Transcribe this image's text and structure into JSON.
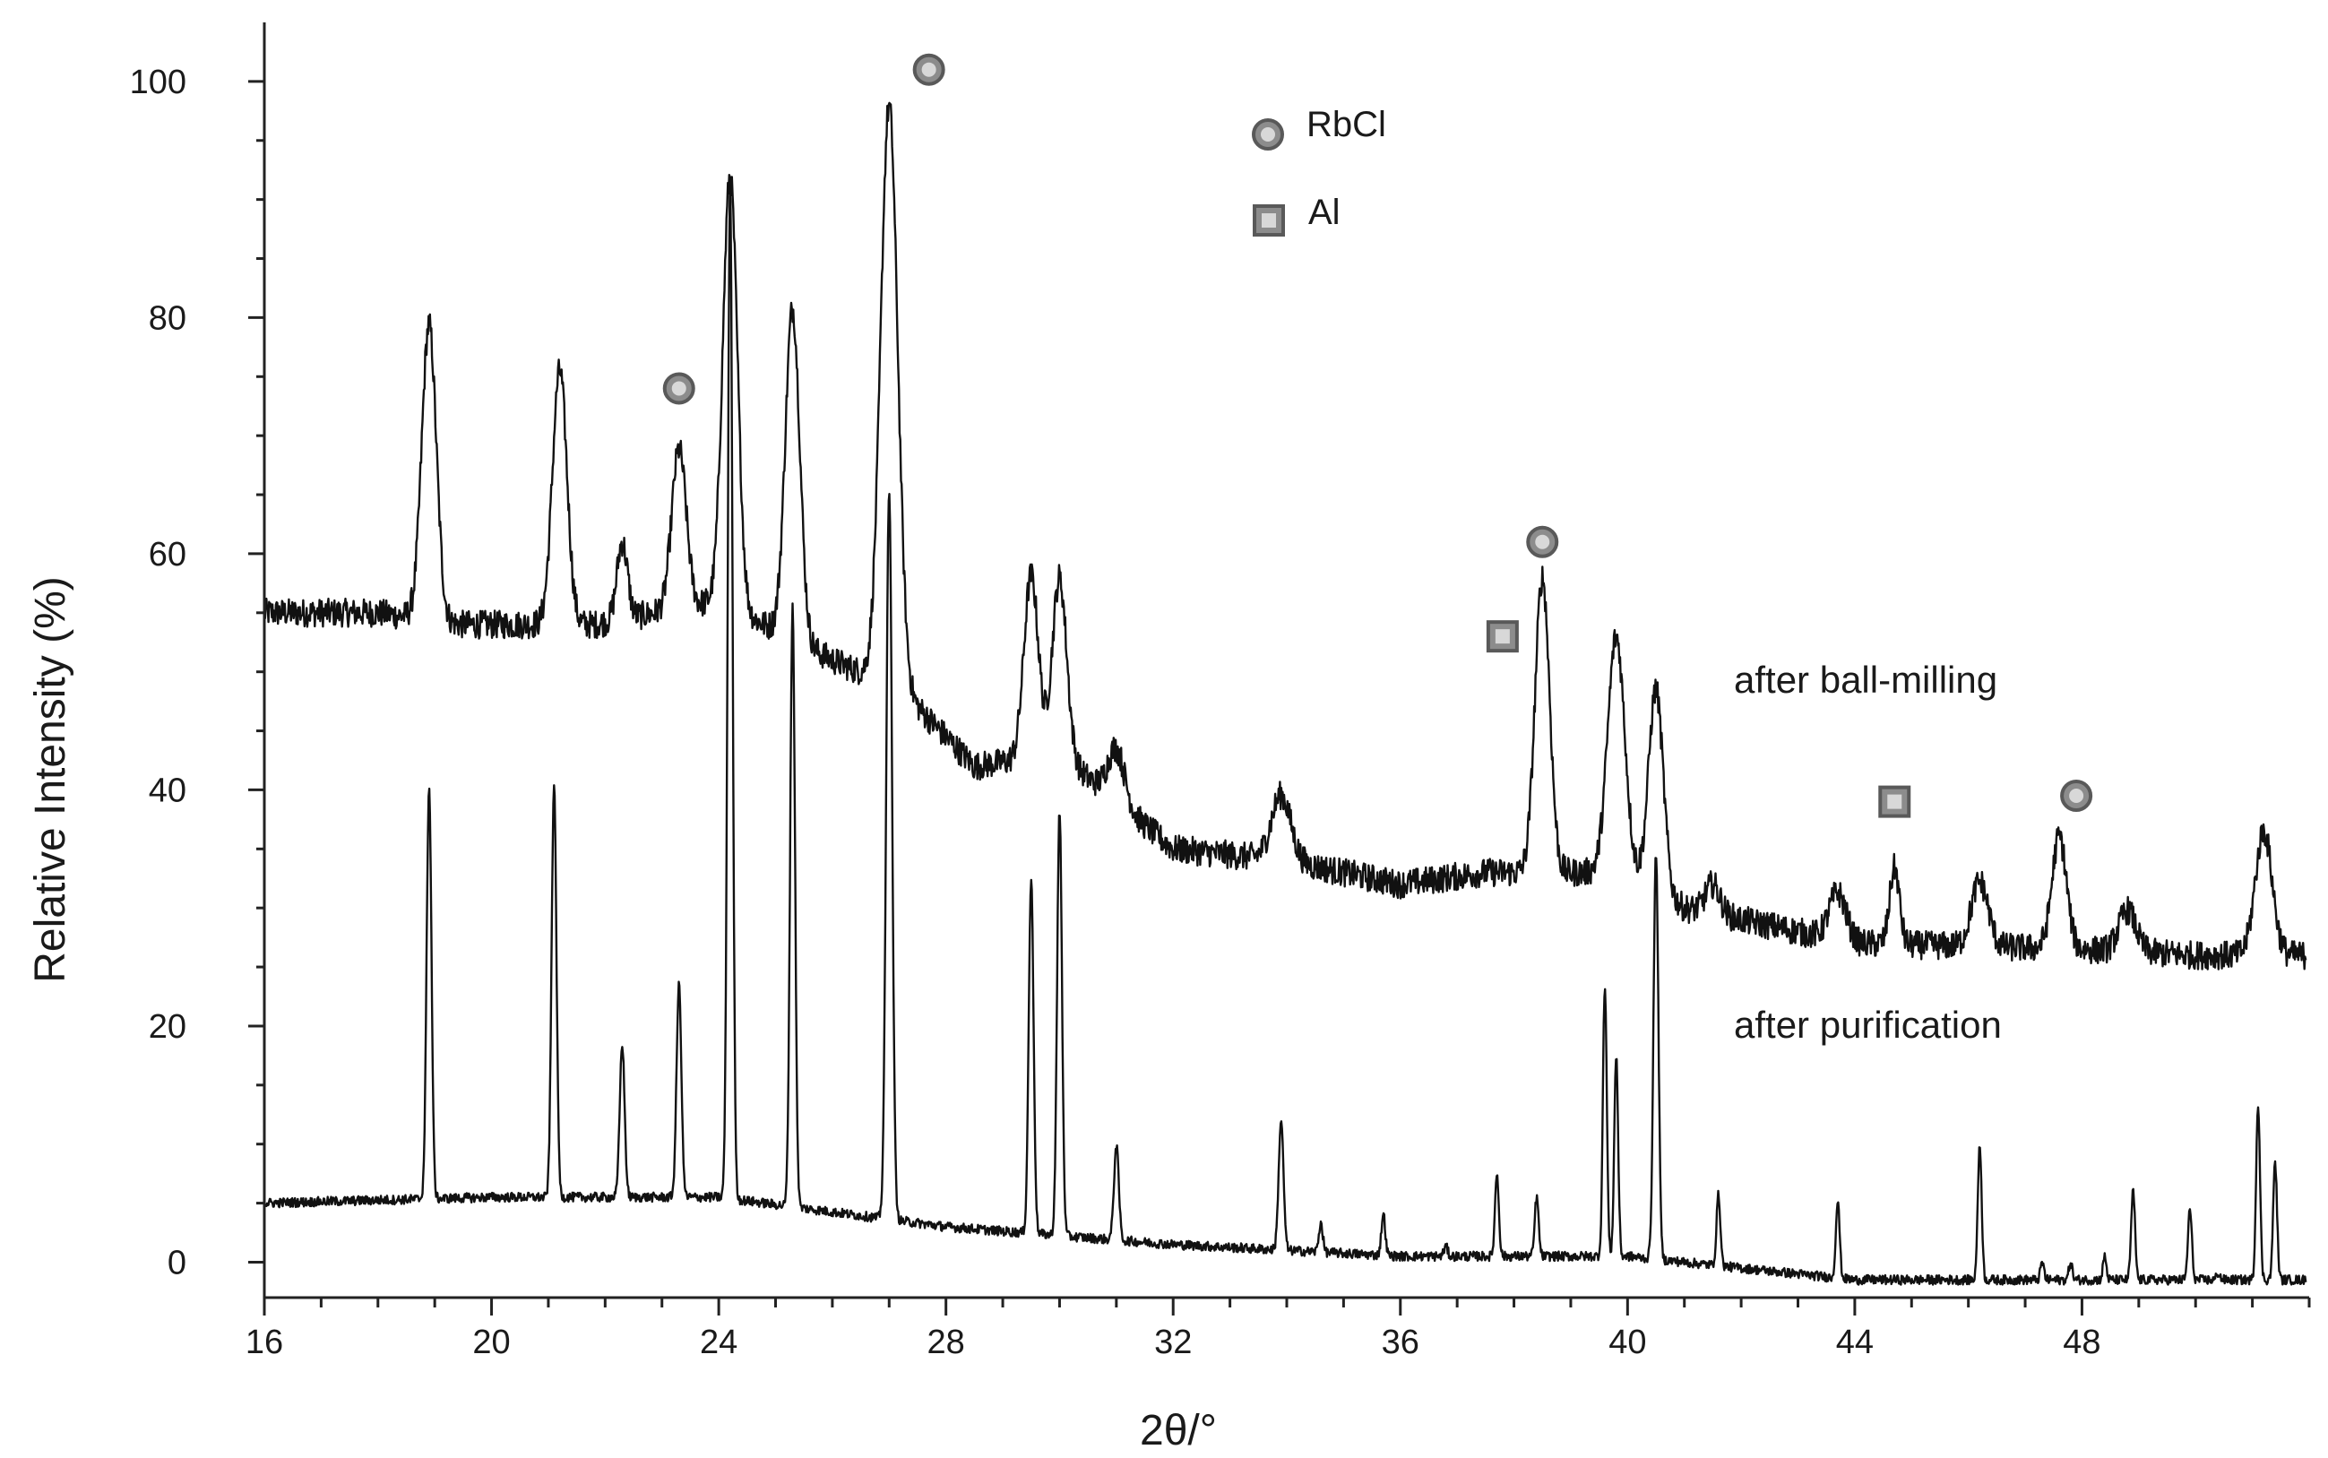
{
  "chart_data": {
    "type": "line",
    "xlabel": "2θ/°",
    "ylabel": "Relative Intensity (%)",
    "xlim": [
      16,
      52
    ],
    "ylim": [
      -3,
      105
    ],
    "x_ticks": [
      16,
      20,
      24,
      28,
      32,
      36,
      40,
      44,
      48
    ],
    "x_tick_labels": [
      "16",
      "20",
      "24",
      "28",
      "32",
      "36",
      "40",
      "44",
      "48"
    ],
    "y_ticks": [
      0,
      20,
      40,
      60,
      80,
      100
    ],
    "y_tick_labels": [
      "0",
      "20",
      "40",
      "60",
      "80",
      "100"
    ],
    "grid": false,
    "legend_placement": "top-center",
    "legend": [
      {
        "label": "RbCl",
        "marker": "circle"
      },
      {
        "label": "Al",
        "marker": "square"
      }
    ],
    "colors": {
      "line": "#111111",
      "marker_fill": "#8c8c8c",
      "marker_stroke": "#595959"
    },
    "series": [
      {
        "name": "after ball-milling",
        "baseline": [
          [
            16,
            55
          ],
          [
            18,
            55
          ],
          [
            19.5,
            54
          ],
          [
            21.8,
            54
          ],
          [
            24,
            56
          ],
          [
            26,
            51
          ],
          [
            27.2,
            48.5
          ],
          [
            28.5,
            42
          ],
          [
            30,
            43
          ],
          [
            32,
            35
          ],
          [
            34,
            34
          ],
          [
            36,
            32
          ],
          [
            37.5,
            33
          ],
          [
            40,
            33
          ],
          [
            41,
            30
          ],
          [
            44,
            27
          ],
          [
            48,
            26.5
          ],
          [
            50,
            26
          ],
          [
            52,
            26
          ]
        ],
        "noise": 1.2,
        "peaks": [
          {
            "x": 18.9,
            "y": 25,
            "w": 0.3
          },
          {
            "x": 21.2,
            "y": 21.5,
            "w": 0.3
          },
          {
            "x": 22.3,
            "y": 6.5,
            "w": 0.22
          },
          {
            "x": 23.3,
            "y": 13.5,
            "w": 0.3
          },
          {
            "x": 24.2,
            "y": 36.5,
            "w": 0.3
          },
          {
            "x": 25.3,
            "y": 28,
            "w": 0.3
          },
          {
            "x": 27.0,
            "y": 49,
            "w": 0.35
          },
          {
            "x": 29.5,
            "y": 15.5,
            "w": 0.3
          },
          {
            "x": 30.0,
            "y": 15,
            "w": 0.3
          },
          {
            "x": 31.0,
            "y": 4.5,
            "w": 0.35
          },
          {
            "x": 33.9,
            "y": 5.5,
            "w": 0.4
          },
          {
            "x": 38.5,
            "y": 25,
            "w": 0.3
          },
          {
            "x": 39.8,
            "y": 20,
            "w": 0.35
          },
          {
            "x": 40.5,
            "y": 17,
            "w": 0.3
          },
          {
            "x": 41.5,
            "y": 2.5,
            "w": 0.3
          },
          {
            "x": 43.7,
            "y": 4,
            "w": 0.35
          },
          {
            "x": 44.7,
            "y": 6.5,
            "w": 0.2
          },
          {
            "x": 46.2,
            "y": 5.5,
            "w": 0.35
          },
          {
            "x": 47.6,
            "y": 9.5,
            "w": 0.3
          },
          {
            "x": 48.8,
            "y": 3.5,
            "w": 0.35
          },
          {
            "x": 51.2,
            "y": 10.5,
            "w": 0.35
          }
        ]
      },
      {
        "name": "after purification",
        "baseline": [
          [
            16,
            5
          ],
          [
            20,
            5.5
          ],
          [
            24,
            5.5
          ],
          [
            28,
            3
          ],
          [
            32,
            1.5
          ],
          [
            36,
            0.5
          ],
          [
            40,
            0.5
          ],
          [
            44,
            -1.5
          ],
          [
            48,
            -1.5
          ],
          [
            52,
            -1.5
          ]
        ],
        "noise": 0.4,
        "peaks": [
          {
            "x": 18.9,
            "y": 35,
            "w": 0.1
          },
          {
            "x": 21.1,
            "y": 35,
            "w": 0.1
          },
          {
            "x": 22.3,
            "y": 13,
            "w": 0.1
          },
          {
            "x": 23.3,
            "y": 18,
            "w": 0.1
          },
          {
            "x": 24.2,
            "y": 86,
            "w": 0.1
          },
          {
            "x": 25.3,
            "y": 51,
            "w": 0.1
          },
          {
            "x": 27.0,
            "y": 62,
            "w": 0.12
          },
          {
            "x": 29.5,
            "y": 30,
            "w": 0.1
          },
          {
            "x": 30.0,
            "y": 36,
            "w": 0.1
          },
          {
            "x": 31.0,
            "y": 8,
            "w": 0.1
          },
          {
            "x": 33.9,
            "y": 11,
            "w": 0.1
          },
          {
            "x": 34.6,
            "y": 2.5,
            "w": 0.08
          },
          {
            "x": 35.7,
            "y": 3.5,
            "w": 0.08
          },
          {
            "x": 36.8,
            "y": 0.8,
            "w": 0.08
          },
          {
            "x": 37.7,
            "y": 7,
            "w": 0.08
          },
          {
            "x": 38.4,
            "y": 5,
            "w": 0.08
          },
          {
            "x": 39.6,
            "y": 23,
            "w": 0.08
          },
          {
            "x": 39.8,
            "y": 17,
            "w": 0.08
          },
          {
            "x": 40.5,
            "y": 34.5,
            "w": 0.1
          },
          {
            "x": 41.6,
            "y": 6,
            "w": 0.08
          },
          {
            "x": 43.7,
            "y": 6.5,
            "w": 0.08
          },
          {
            "x": 46.2,
            "y": 11.5,
            "w": 0.08
          },
          {
            "x": 47.3,
            "y": 1.5,
            "w": 0.07
          },
          {
            "x": 47.8,
            "y": 1.5,
            "w": 0.07
          },
          {
            "x": 48.4,
            "y": 2,
            "w": 0.07
          },
          {
            "x": 48.9,
            "y": 7.5,
            "w": 0.08
          },
          {
            "x": 49.9,
            "y": 6,
            "w": 0.08
          },
          {
            "x": 50.4,
            "y": 0.6,
            "w": 0.07
          },
          {
            "x": 51.1,
            "y": 15,
            "w": 0.08
          },
          {
            "x": 51.4,
            "y": 10,
            "w": 0.08
          }
        ]
      }
    ],
    "annotations": [
      {
        "marker": "circle",
        "phase": "RbCl",
        "x": 27.7,
        "y": 101
      },
      {
        "marker": "circle",
        "phase": "RbCl",
        "x": 23.3,
        "y": 74
      },
      {
        "marker": "circle",
        "phase": "RbCl",
        "x": 38.5,
        "y": 61
      },
      {
        "marker": "square",
        "phase": "Al",
        "x": 37.8,
        "y": 53
      },
      {
        "marker": "circle",
        "phase": "RbCl",
        "x": 47.9,
        "y": 39.5
      },
      {
        "marker": "square",
        "phase": "Al",
        "x": 44.7,
        "y": 39
      }
    ]
  }
}
